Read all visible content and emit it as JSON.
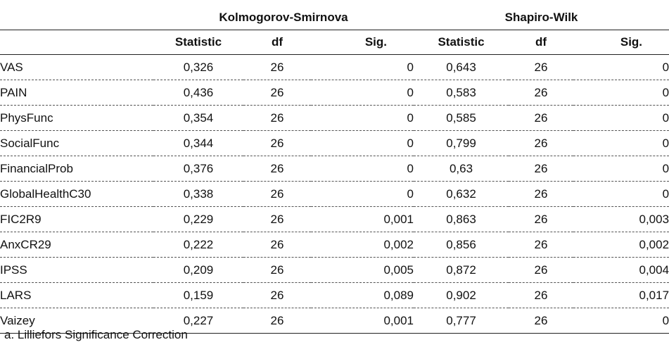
{
  "header": {
    "group_ks": "Kolmogorov-Smirnova",
    "group_sw": "Shapiro-Wilk",
    "columns": [
      "Statistic",
      "df",
      "Sig.",
      "Statistic",
      "df",
      "Sig."
    ]
  },
  "rows": [
    {
      "name": "VAS",
      "ks_stat": "0,326",
      "ks_df": "26",
      "ks_sig": "0",
      "sw_stat": "0,643",
      "sw_df": "26",
      "sw_sig": "0"
    },
    {
      "name": "PAIN",
      "ks_stat": "0,436",
      "ks_df": "26",
      "ks_sig": "0",
      "sw_stat": "0,583",
      "sw_df": "26",
      "sw_sig": "0"
    },
    {
      "name": "PhysFunc",
      "ks_stat": "0,354",
      "ks_df": "26",
      "ks_sig": "0",
      "sw_stat": "0,585",
      "sw_df": "26",
      "sw_sig": "0"
    },
    {
      "name": "SocialFunc",
      "ks_stat": "0,344",
      "ks_df": "26",
      "ks_sig": "0",
      "sw_stat": "0,799",
      "sw_df": "26",
      "sw_sig": "0"
    },
    {
      "name": "FinancialProb",
      "ks_stat": "0,376",
      "ks_df": "26",
      "ks_sig": "0",
      "sw_stat": "0,63",
      "sw_df": "26",
      "sw_sig": "0"
    },
    {
      "name": "GlobalHealthC30",
      "ks_stat": "0,338",
      "ks_df": "26",
      "ks_sig": "0",
      "sw_stat": "0,632",
      "sw_df": "26",
      "sw_sig": "0"
    },
    {
      "name": "FIC2R9",
      "ks_stat": "0,229",
      "ks_df": "26",
      "ks_sig": "0,001",
      "sw_stat": "0,863",
      "sw_df": "26",
      "sw_sig": "0,003"
    },
    {
      "name": "AnxCR29",
      "ks_stat": "0,222",
      "ks_df": "26",
      "ks_sig": "0,002",
      "sw_stat": "0,856",
      "sw_df": "26",
      "sw_sig": "0,002"
    },
    {
      "name": "IPSS",
      "ks_stat": "0,209",
      "ks_df": "26",
      "ks_sig": "0,005",
      "sw_stat": "0,872",
      "sw_df": "26",
      "sw_sig": "0,004"
    },
    {
      "name": "LARS",
      "ks_stat": "0,159",
      "ks_df": "26",
      "ks_sig": "0,089",
      "sw_stat": "0,902",
      "sw_df": "26",
      "sw_sig": "0,017"
    },
    {
      "name": "Vaizey",
      "ks_stat": "0,227",
      "ks_df": "26",
      "ks_sig": "0,001",
      "sw_stat": "0,777",
      "sw_df": "26",
      "sw_sig": "0"
    }
  ],
  "footnote": "a. Lilliefors Significance Correction"
}
